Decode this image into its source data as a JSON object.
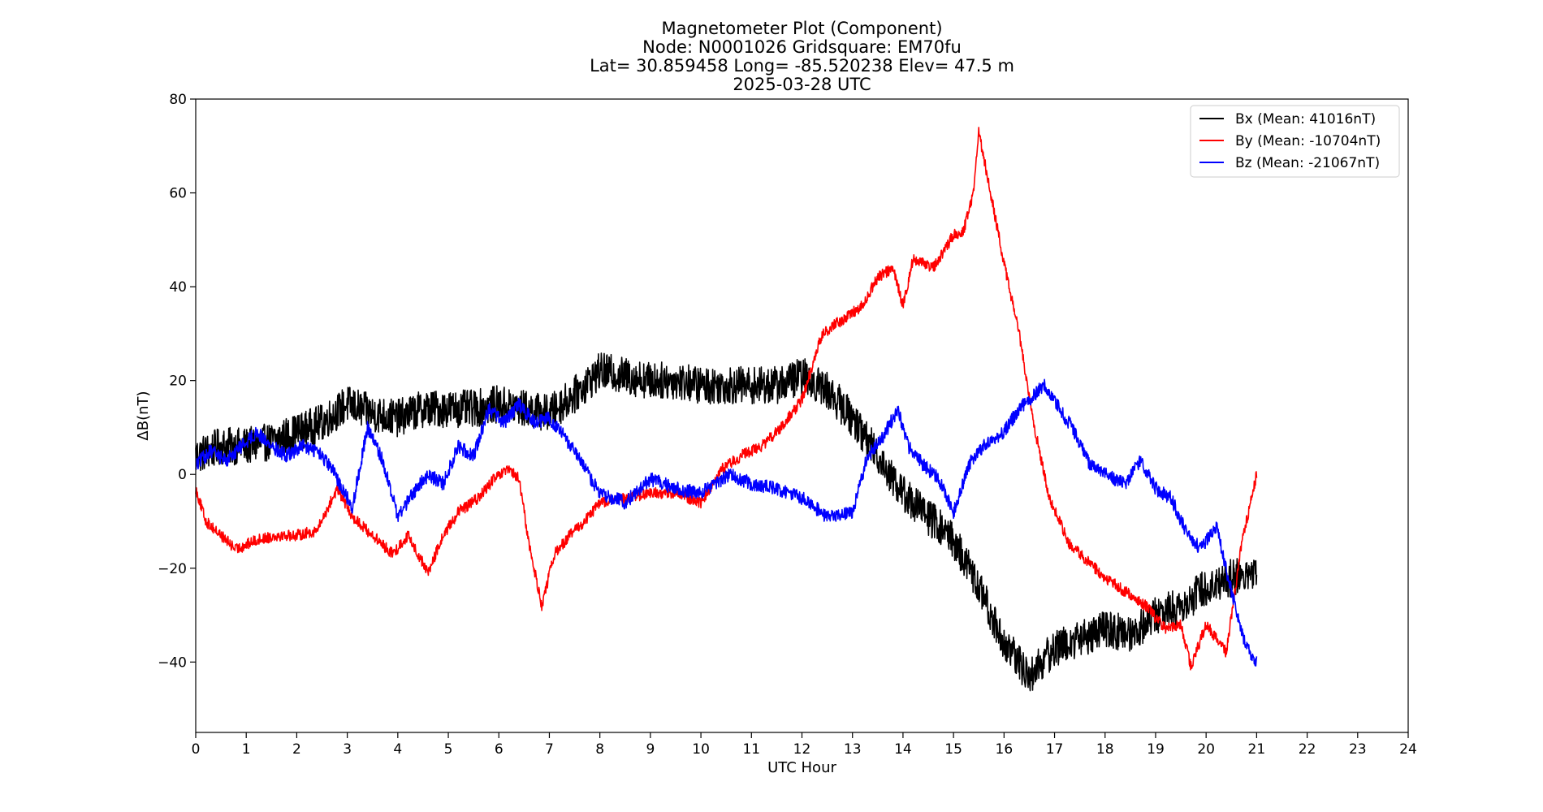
{
  "chart_data": {
    "type": "line",
    "title_lines": [
      "Magnetometer Plot (Component)",
      "Node:  N0001026     Gridsquare:  EM70fu",
      "Lat= 30.859458    Long= -85.520238    Elev= 47.5 m",
      "2025-03-28  UTC"
    ],
    "xlabel": "UTC Hour",
    "ylabel": "ΔB(nT)",
    "xlim": [
      0,
      24
    ],
    "ylim": [
      -55,
      80
    ],
    "xticks": [
      0,
      1,
      2,
      3,
      4,
      5,
      6,
      7,
      8,
      9,
      10,
      11,
      12,
      13,
      14,
      15,
      16,
      17,
      18,
      19,
      20,
      21,
      22,
      23,
      24
    ],
    "yticks": [
      -40,
      -20,
      0,
      20,
      40,
      60,
      80
    ],
    "ytick_labels": [
      "−40",
      "−20",
      "0",
      "20",
      "40",
      "60",
      "80"
    ],
    "grid": false,
    "legend_position": "top-right",
    "series": [
      {
        "name": "Bx (Mean: 41016nT)",
        "color": "#000000",
        "noise": 4,
        "x": [
          0,
          0.5,
          1,
          1.5,
          2,
          2.5,
          3,
          3.5,
          4,
          4.5,
          5,
          5.5,
          6,
          6.5,
          7,
          7.5,
          8,
          8.5,
          9,
          9.5,
          10,
          10.5,
          11,
          11.5,
          12,
          12.5,
          13,
          13.5,
          14,
          14.5,
          15,
          15.5,
          16,
          16.5,
          17,
          17.5,
          18,
          18.5,
          19,
          19.5,
          20,
          20.5,
          21
        ],
        "y": [
          4,
          6,
          6,
          7,
          9,
          11,
          15,
          13,
          12,
          14,
          14,
          14,
          15,
          14,
          13,
          17,
          22,
          21,
          20,
          20,
          19,
          19,
          19,
          19,
          21,
          18,
          12,
          4,
          -4,
          -9,
          -14,
          -24,
          -36,
          -43,
          -37,
          -35,
          -33,
          -34,
          -30,
          -28,
          -24,
          -22,
          -21
        ]
      },
      {
        "name": "By (Mean: -10704nT)",
        "color": "#ff0000",
        "noise": 1.2,
        "x": [
          0,
          0.2,
          0.5,
          0.8,
          1.2,
          1.6,
          2,
          2.4,
          2.8,
          3.1,
          3.5,
          3.9,
          4.2,
          4.6,
          4.9,
          5.2,
          5.6,
          5.9,
          6.2,
          6.4,
          6.6,
          6.85,
          7.1,
          7.4,
          7.7,
          8,
          8.5,
          9,
          9.5,
          10,
          10.4,
          10.8,
          11.2,
          11.6,
          12,
          12.4,
          12.8,
          13.2,
          13.5,
          13.8,
          14,
          14.2,
          14.4,
          14.6,
          15,
          15.2,
          15.4,
          15.5,
          15.7,
          16,
          16.3,
          16.6,
          16.9,
          17.3,
          17.6,
          18,
          18.4,
          18.8,
          19.2,
          19.5,
          19.7,
          20,
          20.4,
          20.7,
          21
        ],
        "y": [
          -3,
          -10,
          -13,
          -16,
          -14,
          -13,
          -13,
          -12,
          -3,
          -9,
          -13,
          -17,
          -13,
          -21,
          -13,
          -8,
          -5,
          -1,
          1,
          -1,
          -15,
          -28,
          -17,
          -13,
          -10,
          -6,
          -5,
          -4,
          -4,
          -6,
          1,
          4,
          6,
          10,
          16,
          30,
          33,
          36,
          42,
          44,
          36,
          46,
          45,
          44,
          51,
          52,
          60,
          73,
          62,
          45,
          30,
          10,
          -5,
          -15,
          -18,
          -22,
          -25,
          -28,
          -33,
          -32,
          -41,
          -32,
          -38,
          -15,
          0
        ]
      },
      {
        "name": "Bz (Mean: -21067nT)",
        "color": "#0000ff",
        "noise": 1.5,
        "x": [
          0,
          0.3,
          0.6,
          0.9,
          1.2,
          1.5,
          1.8,
          2.1,
          2.4,
          2.7,
          2.9,
          3.1,
          3.4,
          3.7,
          4,
          4.3,
          4.6,
          4.9,
          5.2,
          5.5,
          5.8,
          6.1,
          6.4,
          6.7,
          7,
          7.3,
          7.6,
          8,
          8.5,
          9,
          9.5,
          10,
          10.3,
          10.6,
          11,
          11.5,
          12,
          12.5,
          13,
          13.3,
          13.6,
          13.9,
          14.1,
          14.4,
          14.7,
          15,
          15.3,
          15.6,
          16,
          16.3,
          16.6,
          16.8,
          17.1,
          17.4,
          17.7,
          18,
          18.4,
          18.7,
          19,
          19.3,
          19.6,
          19.9,
          20.2,
          20.5,
          20.8,
          21
        ],
        "y": [
          2,
          5,
          3,
          6,
          9,
          6,
          4,
          6,
          5,
          1,
          -3,
          -7,
          10,
          3,
          -9,
          -4,
          0,
          -2,
          6,
          4,
          14,
          11,
          15,
          11,
          12,
          8,
          3,
          -4,
          -6,
          -1,
          -3,
          -4,
          -2,
          0,
          -2,
          -3,
          -5,
          -9,
          -8,
          4,
          8,
          14,
          6,
          2,
          -1,
          -8,
          2,
          6,
          9,
          14,
          17,
          19,
          14,
          9,
          2,
          0,
          -2,
          3,
          -3,
          -5,
          -12,
          -16,
          -11,
          -25,
          -37,
          -40
        ]
      }
    ]
  }
}
